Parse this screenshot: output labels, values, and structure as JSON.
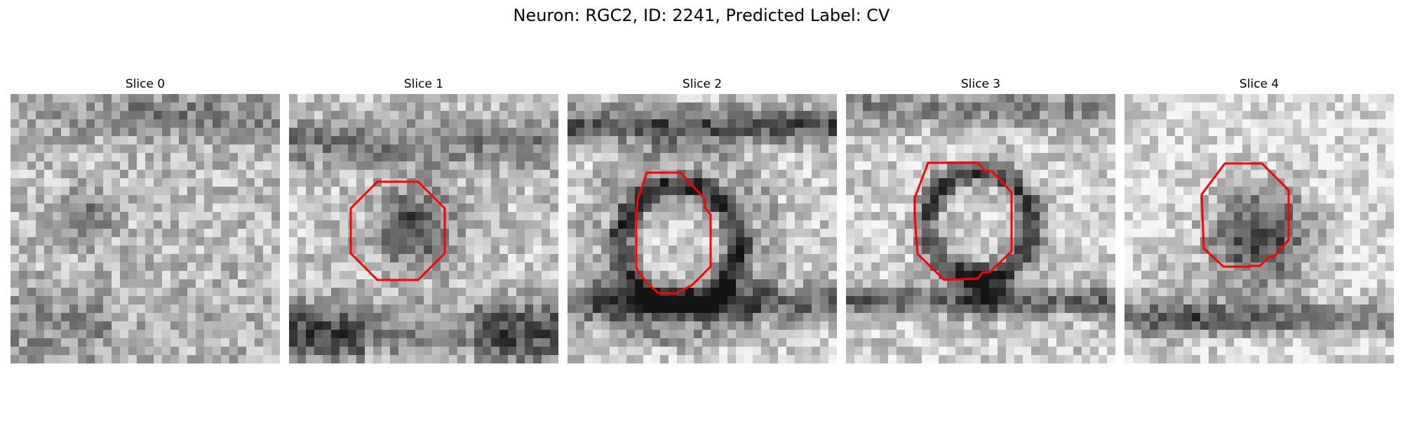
{
  "figure": {
    "title": "Neuron: RGC2, ID: 2241, Predicted Label: CV"
  },
  "panels": [
    {
      "title": "Slice 0"
    },
    {
      "title": "Slice 1"
    },
    {
      "title": "Slice 2"
    },
    {
      "title": "Slice 3"
    },
    {
      "title": "Slice 4"
    }
  ],
  "colors": {
    "contour": "#ff0000",
    "background": "#ffffff"
  }
}
